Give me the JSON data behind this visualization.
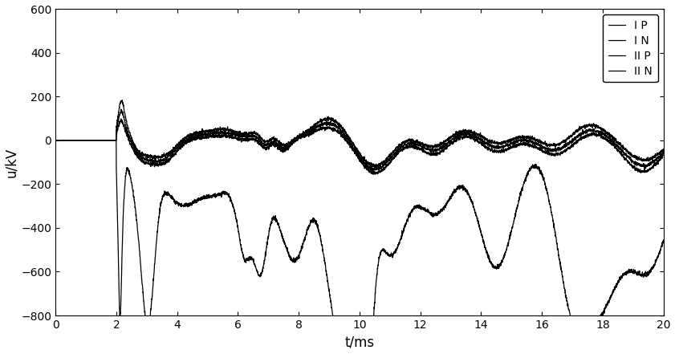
{
  "xlabel": "t/ms",
  "ylabel": "u/kV",
  "xlim": [
    0,
    20
  ],
  "ylim": [
    -800,
    600
  ],
  "yticks": [
    -800,
    -600,
    -400,
    -200,
    0,
    200,
    400,
    600
  ],
  "xticks": [
    0,
    2,
    4,
    6,
    8,
    10,
    12,
    14,
    16,
    18,
    20
  ],
  "fault_time": 2.0,
  "line_color": "#000000",
  "legend_labels": [
    "I P",
    "I N",
    "II P",
    "II N"
  ],
  "figsize": [
    8.41,
    4.41
  ],
  "dpi": 100,
  "linewidth": 0.9,
  "legend_fontsize": 10,
  "axis_fontsize": 12
}
